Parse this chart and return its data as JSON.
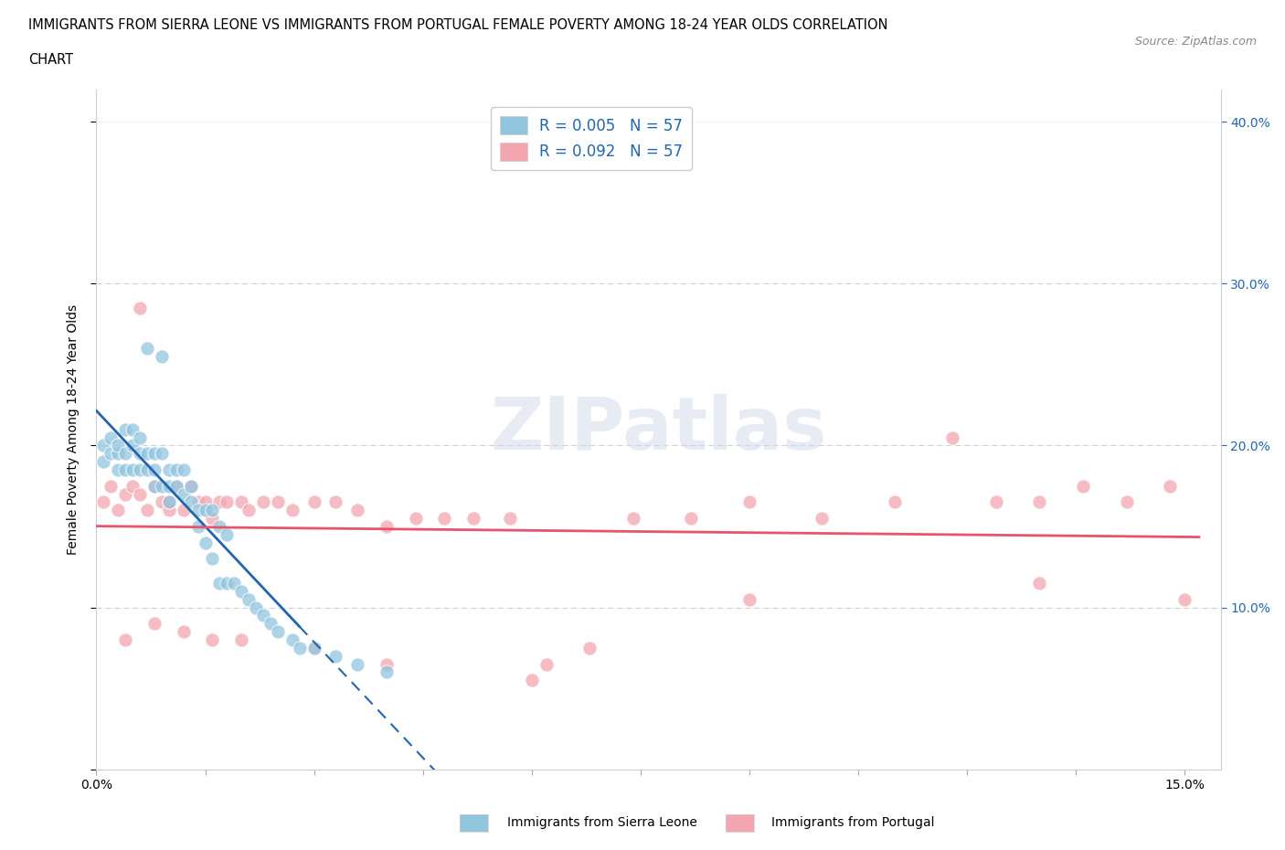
{
  "title_line1": "IMMIGRANTS FROM SIERRA LEONE VS IMMIGRANTS FROM PORTUGAL FEMALE POVERTY AMONG 18-24 YEAR OLDS CORRELATION",
  "title_line2": "CHART",
  "source_text": "Source: ZipAtlas.com",
  "ylabel": "Female Poverty Among 18-24 Year Olds",
  "xlim": [
    0,
    0.155
  ],
  "ylim": [
    0,
    0.42
  ],
  "series1_color": "#92c5de",
  "series2_color": "#f4a6b0",
  "series1_line_color": "#2166ac",
  "series2_line_color": "#e8546a",
  "watermark": "ZIPatlas",
  "sierra_leone_x": [
    0.001,
    0.001,
    0.002,
    0.002,
    0.003,
    0.003,
    0.003,
    0.004,
    0.004,
    0.004,
    0.005,
    0.005,
    0.005,
    0.006,
    0.006,
    0.006,
    0.007,
    0.007,
    0.007,
    0.008,
    0.008,
    0.008,
    0.009,
    0.009,
    0.009,
    0.01,
    0.01,
    0.01,
    0.011,
    0.011,
    0.012,
    0.012,
    0.013,
    0.013,
    0.014,
    0.014,
    0.015,
    0.015,
    0.016,
    0.016,
    0.017,
    0.017,
    0.018,
    0.018,
    0.019,
    0.02,
    0.021,
    0.022,
    0.023,
    0.024,
    0.025,
    0.027,
    0.028,
    0.03,
    0.033,
    0.036,
    0.04
  ],
  "sierra_leone_y": [
    0.2,
    0.19,
    0.205,
    0.195,
    0.195,
    0.185,
    0.2,
    0.21,
    0.195,
    0.185,
    0.21,
    0.2,
    0.185,
    0.205,
    0.195,
    0.185,
    0.26,
    0.195,
    0.185,
    0.195,
    0.185,
    0.175,
    0.255,
    0.195,
    0.175,
    0.185,
    0.175,
    0.165,
    0.185,
    0.175,
    0.185,
    0.17,
    0.175,
    0.165,
    0.16,
    0.15,
    0.16,
    0.14,
    0.16,
    0.13,
    0.15,
    0.115,
    0.145,
    0.115,
    0.115,
    0.11,
    0.105,
    0.1,
    0.095,
    0.09,
    0.085,
    0.08,
    0.075,
    0.075,
    0.07,
    0.065,
    0.06
  ],
  "portugal_x": [
    0.001,
    0.002,
    0.003,
    0.004,
    0.005,
    0.006,
    0.006,
    0.007,
    0.008,
    0.009,
    0.01,
    0.01,
    0.011,
    0.012,
    0.013,
    0.014,
    0.015,
    0.016,
    0.017,
    0.018,
    0.02,
    0.021,
    0.023,
    0.025,
    0.027,
    0.03,
    0.033,
    0.036,
    0.04,
    0.044,
    0.048,
    0.052,
    0.057,
    0.062,
    0.068,
    0.074,
    0.082,
    0.09,
    0.1,
    0.11,
    0.118,
    0.124,
    0.13,
    0.136,
    0.142,
    0.148,
    0.15,
    0.004,
    0.008,
    0.012,
    0.016,
    0.02,
    0.03,
    0.04,
    0.06,
    0.09,
    0.13
  ],
  "portugal_y": [
    0.165,
    0.175,
    0.16,
    0.17,
    0.175,
    0.17,
    0.285,
    0.16,
    0.175,
    0.165,
    0.16,
    0.165,
    0.175,
    0.16,
    0.175,
    0.165,
    0.165,
    0.155,
    0.165,
    0.165,
    0.165,
    0.16,
    0.165,
    0.165,
    0.16,
    0.165,
    0.165,
    0.16,
    0.15,
    0.155,
    0.155,
    0.155,
    0.155,
    0.065,
    0.075,
    0.155,
    0.155,
    0.165,
    0.155,
    0.165,
    0.205,
    0.165,
    0.165,
    0.175,
    0.165,
    0.175,
    0.105,
    0.08,
    0.09,
    0.085,
    0.08,
    0.08,
    0.075,
    0.065,
    0.055,
    0.105,
    0.115
  ]
}
